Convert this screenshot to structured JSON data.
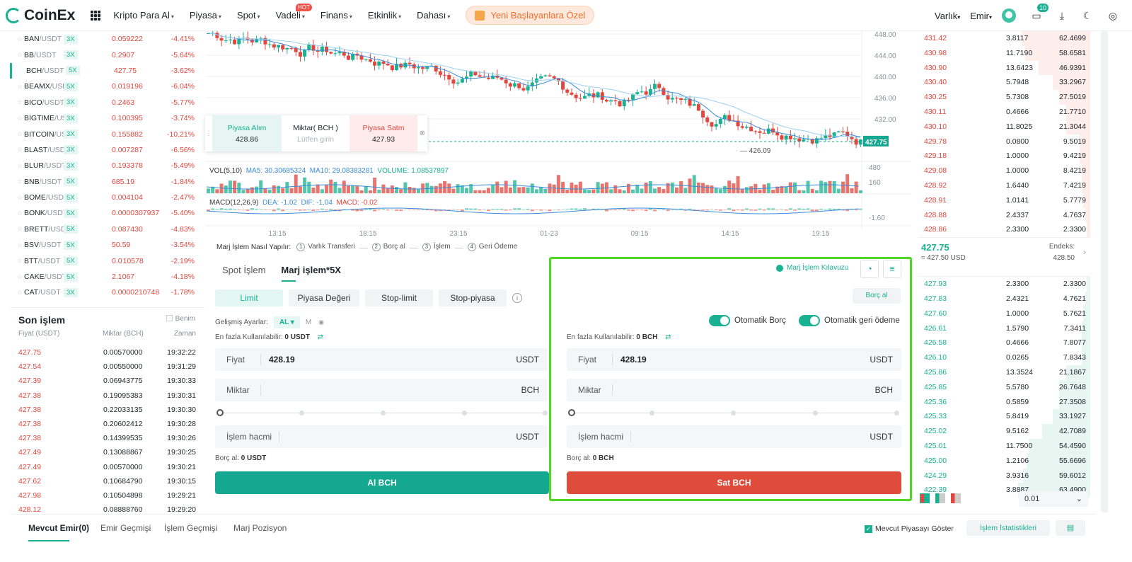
{
  "header": {
    "brand": "CoinEx",
    "nav": [
      {
        "label": "Kripto Para Al",
        "hot": false
      },
      {
        "label": "Piyasa",
        "hot": false
      },
      {
        "label": "Spot",
        "hot": false
      },
      {
        "label": "Vadeli",
        "hot": true
      },
      {
        "label": "Finans",
        "hot": false
      },
      {
        "label": "Etkinlik",
        "hot": false
      },
      {
        "label": "Dahası",
        "hot": false
      }
    ],
    "hot_badge": "HOT",
    "promo": "Yeni Başlayanlara Özel",
    "assets": "Varlık",
    "orders": "Emir",
    "notif_count": "10"
  },
  "markets": [
    {
      "base": "BAN",
      "quote": "/USDT",
      "lev": "3X",
      "price": "0.059222",
      "change": "-4.41%"
    },
    {
      "base": "BB",
      "quote": "/USDT",
      "lev": "3X",
      "price": "0.2907",
      "change": "-5.64%"
    },
    {
      "base": "BCH",
      "quote": "/USDT",
      "lev": "5X",
      "price": "427.75",
      "change": "-3.62%"
    },
    {
      "base": "BEAMX",
      "quote": "/USDT",
      "lev": "5X",
      "price": "0.019196",
      "change": "-6.04%"
    },
    {
      "base": "BICO",
      "quote": "/USDT",
      "lev": "3X",
      "price": "0.2463",
      "change": "-5.77%"
    },
    {
      "base": "BIGTIME",
      "quote": "/USDT",
      "lev": "3X",
      "price": "0.100395",
      "change": "-3.74%"
    },
    {
      "base": "BITCOIN",
      "quote": "/USDT",
      "lev": "3X",
      "price": "0.155882",
      "change": "-10.21%"
    },
    {
      "base": "BLAST",
      "quote": "/USDT",
      "lev": "3X",
      "price": "0.007287",
      "change": "-6.56%"
    },
    {
      "base": "BLUR",
      "quote": "/USDT",
      "lev": "3X",
      "price": "0.193378",
      "change": "-5.49%"
    },
    {
      "base": "BNB",
      "quote": "/USDT",
      "lev": "5X",
      "price": "685.19",
      "change": "-1.84%"
    },
    {
      "base": "BOME",
      "quote": "/USDT",
      "lev": "5X",
      "price": "0.004104",
      "change": "-2.47%"
    },
    {
      "base": "BONK",
      "quote": "/USDT",
      "lev": "5X",
      "price": "0.0000307937",
      "change": "-5.40%"
    },
    {
      "base": "BRETT",
      "quote": "/USDT",
      "lev": "5X",
      "price": "0.087430",
      "change": "-4.83%"
    },
    {
      "base": "BSV",
      "quote": "/USDT",
      "lev": "5X",
      "price": "50.59",
      "change": "-3.54%"
    },
    {
      "base": "BTT",
      "quote": "/USDT",
      "lev": "5X",
      "price": "0.0 10578",
      "change": "-2.19%"
    },
    {
      "base": "CAKE",
      "quote": "/USDT",
      "lev": "5X",
      "price": "2.1067",
      "change": "-4.18%"
    },
    {
      "base": "CAT",
      "quote": "/USDT",
      "lev": "3X",
      "price": "0.0000210748",
      "change": "-1.78%"
    }
  ],
  "trades": {
    "title": "Son işlem",
    "mine": "Benim",
    "col_price": "Fiyat (USDT)",
    "col_amount": "Miktar (BCH)",
    "col_time": "Zaman",
    "rows": [
      {
        "p": "427.75",
        "a": "0.00570000",
        "t": "19:32:22"
      },
      {
        "p": "427.54",
        "a": "0.00550000",
        "t": "19:31:29"
      },
      {
        "p": "427.39",
        "a": "0.06943775",
        "t": "19:30:33"
      },
      {
        "p": "427.38",
        "a": "0.19095383",
        "t": "19:30:31"
      },
      {
        "p": "427.38",
        "a": "0.22033135",
        "t": "19:30:30"
      },
      {
        "p": "427.38",
        "a": "0.20602412",
        "t": "19:30:28"
      },
      {
        "p": "427.38",
        "a": "0.14399535",
        "t": "19:30:26"
      },
      {
        "p": "427.49",
        "a": "0.13088867",
        "t": "19:30:25"
      },
      {
        "p": "427.49",
        "a": "0.00570000",
        "t": "19:30:21"
      },
      {
        "p": "427.62",
        "a": "0.10684790",
        "t": "19:30:15"
      },
      {
        "p": "427.98",
        "a": "0.10504898",
        "t": "19:29:21"
      },
      {
        "p": "428.12",
        "a": "0.08888760",
        "t": "19:29:20"
      }
    ]
  },
  "chart": {
    "price_ticks": [
      "448.00",
      "444.00",
      "440.00",
      "436.00",
      "432.00"
    ],
    "vol_ticks": [
      "480",
      "160"
    ],
    "macd_tick": "-1.60",
    "time_ticks": [
      "13:15",
      "18:15",
      "23:15",
      "01-23",
      "09:15",
      "14:15",
      "19:15"
    ],
    "last_price": "427.75",
    "low_marker": "426.09",
    "vol_legend": {
      "label": "VOL(5,10)",
      "ma5": "MA5: 30.30685324",
      "ma10": "MA10: 29.08383281",
      "volume": "VOLUME: 1.08537897"
    },
    "macd_legend": {
      "label": "MACD(12,26,9)",
      "dea": "DEA: -1.02",
      "dif": "DIF: -1.04",
      "macd": "MACD: -0.02"
    }
  },
  "quick": {
    "buy_label": "Piyasa Alım",
    "buy_price": "428.86",
    "qty_label": "Miktar( BCH )",
    "qty_placeholder": "Lütfen girin",
    "sell_label": "Piyasa Satm",
    "sell_price": "427.93"
  },
  "steps": {
    "title": "Marj İşlem Nasıl Yapılır:",
    "items": [
      {
        "n": "1",
        "label": "Varlık Transferi"
      },
      {
        "n": "2",
        "label": "Borç al"
      },
      {
        "n": "3",
        "label": "İşlem"
      },
      {
        "n": "4",
        "label": "Geri Ödeme"
      }
    ]
  },
  "form": {
    "tab_spot": "Spot İşlem",
    "tab_margin": "Marj işlem*5X",
    "guide": "Marj İşlem Kılavuzu",
    "borrow_btn": "Borç al",
    "order_types": [
      "Limit",
      "Piyasa Değeri",
      "Stop-limit",
      "Stop-piyasa"
    ],
    "advanced": "Gelişmiş Ayarlar:",
    "adv_value": "AL",
    "adv_m": "M",
    "auto_borrow": "Otomatik Borç",
    "auto_repay": "Otomatik geri ödeme",
    "buy": {
      "avail_label": "En fazla Kullanılabilir:",
      "avail_value": "0 USDT",
      "price_label": "Fiyat",
      "price": "428.19",
      "price_unit": "USDT",
      "qty_label": "Miktar",
      "qty_unit": "BCH",
      "vol_label": "İşlem hacmi",
      "vol_unit": "USDT",
      "borrow_label": "Borç al:",
      "borrow_value": "0 USDT",
      "button": "Al BCH",
      "color": "#13a88f"
    },
    "sell": {
      "avail_label": "En fazla Kullanılabilir:",
      "avail_value": "0 BCH",
      "price_label": "Fiyat",
      "price": "428.19",
      "price_unit": "USDT",
      "qty_label": "Miktar",
      "qty_unit": "BCH",
      "vol_label": "İşlem hacmi",
      "vol_unit": "USDT",
      "borrow_label": "Borç al:",
      "borrow_value": "0 BCH",
      "button": "Sat BCH",
      "color": "#e04c3c"
    }
  },
  "book": {
    "asks": [
      {
        "p": "431.42",
        "a": "3.8117",
        "t": "62.4699",
        "d": 0.4
      },
      {
        "p": "430.98",
        "a": "11.7190",
        "t": "58.6581",
        "d": 0.38
      },
      {
        "p": "430.90",
        "a": "13.6423",
        "t": "46.9391",
        "d": 0.3
      },
      {
        "p": "430.40",
        "a": "5.7948",
        "t": "33.2967",
        "d": 0.22
      },
      {
        "p": "430.25",
        "a": "5.7308",
        "t": "27.5019",
        "d": 0.18
      },
      {
        "p": "430.11",
        "a": "0.4666",
        "t": "21.7710",
        "d": 0.14
      },
      {
        "p": "430.10",
        "a": "11.8025",
        "t": "21.3044",
        "d": 0.14
      },
      {
        "p": "429.78",
        "a": "0.0800",
        "t": "9.5019",
        "d": 0.06
      },
      {
        "p": "429.18",
        "a": "1.0000",
        "t": "9.4219",
        "d": 0.06
      },
      {
        "p": "429.08",
        "a": "1.0000",
        "t": "8.4219",
        "d": 0.05
      },
      {
        "p": "428.92",
        "a": "1.6440",
        "t": "7.4219",
        "d": 0.05
      },
      {
        "p": "428.91",
        "a": "1.0141",
        "t": "5.7779",
        "d": 0.04
      },
      {
        "p": "428.88",
        "a": "2.4337",
        "t": "4.7637",
        "d": 0.03
      },
      {
        "p": "428.86",
        "a": "2.3300",
        "t": "2.3300",
        "d": 0.02
      }
    ],
    "mid_price": "427.75",
    "mid_usd": "≈ 427.50  USD",
    "index_label": "Endeks:",
    "index_value": "428.50",
    "bids": [
      {
        "p": "427.93",
        "a": "2.3300",
        "t": "2.3300",
        "d": 0.02
      },
      {
        "p": "427.83",
        "a": "2.4321",
        "t": "4.7621",
        "d": 0.03
      },
      {
        "p": "427.60",
        "a": "1.0000",
        "t": "5.7621",
        "d": 0.04
      },
      {
        "p": "426.61",
        "a": "1.5790",
        "t": "7.3411",
        "d": 0.05
      },
      {
        "p": "426.58",
        "a": "0.4666",
        "t": "7.8077",
        "d": 0.05
      },
      {
        "p": "426.10",
        "a": "0.0265",
        "t": "7.8343",
        "d": 0.05
      },
      {
        "p": "425.86",
        "a": "13.3524",
        "t": "21.1867",
        "d": 0.14
      },
      {
        "p": "425.85",
        "a": "5.5780",
        "t": "26.7648",
        "d": 0.18
      },
      {
        "p": "425.36",
        "a": "0.5859",
        "t": "27.3508",
        "d": 0.18
      },
      {
        "p": "425.33",
        "a": "5.8419",
        "t": "33.1927",
        "d": 0.22
      },
      {
        "p": "425.02",
        "a": "9.5162",
        "t": "42.7089",
        "d": 0.28
      },
      {
        "p": "425.01",
        "a": "11.7500",
        "t": "54.4590",
        "d": 0.36
      },
      {
        "p": "425.00",
        "a": "1.2106",
        "t": "55.6696",
        "d": 0.37
      },
      {
        "p": "424.29",
        "a": "3.9316",
        "t": "59.6012",
        "d": 0.39
      },
      {
        "p": "422.39",
        "a": "3.8887",
        "t": "63.4900",
        "d": 0.42
      }
    ],
    "precision": "0.01"
  },
  "bottom": {
    "tabs": [
      "Mevcut Emir(0)",
      "Emir Geçmişi",
      "İşlem Geçmişi",
      "Marj Pozisyon"
    ],
    "show_current": "Mevcut Piyasayı Göster",
    "stats": "İşlem İstatistikleri"
  },
  "colors": {
    "green": "#19b192",
    "red": "#e2463c",
    "highlight": "#52d526"
  }
}
